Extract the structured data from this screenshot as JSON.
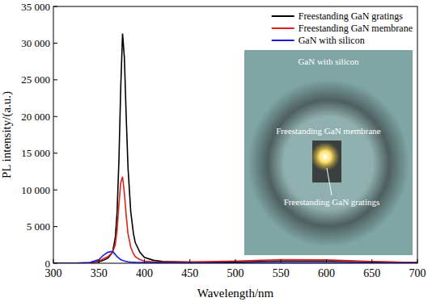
{
  "chart_data": {
    "type": "line",
    "x_label": "Wavelength/nm",
    "y_label": "PL intensity/(a.u.)",
    "x": [
      300,
      320,
      340,
      350,
      355,
      360,
      365,
      368,
      370,
      372,
      374,
      376,
      378,
      380,
      382,
      385,
      388,
      390,
      395,
      400,
      410,
      420,
      450,
      500,
      550,
      600,
      650,
      700
    ],
    "series": [
      {
        "name": "Freestanding GaN gratings",
        "color": "#000000",
        "values": [
          0,
          0,
          50,
          200,
          400,
          700,
          1500,
          3500,
          7000,
          14000,
          24000,
          31300,
          28000,
          20000,
          13000,
          7000,
          4000,
          2800,
          1500,
          800,
          400,
          250,
          150,
          200,
          300,
          300,
          200,
          100
        ]
      },
      {
        "name": "Freestanding GaN membrane",
        "color": "#e0201b",
        "values": [
          0,
          0,
          50,
          300,
          600,
          900,
          1500,
          2500,
          4500,
          8000,
          11000,
          11800,
          9500,
          6500,
          4000,
          2200,
          1300,
          900,
          500,
          300,
          200,
          150,
          150,
          300,
          500,
          450,
          250,
          100
        ]
      },
      {
        "name": "GaN with silicon",
        "color": "#1a1adf",
        "values": [
          0,
          0,
          100,
          500,
          1100,
          1500,
          1600,
          1200,
          900,
          700,
          500,
          400,
          300,
          250,
          200,
          150,
          130,
          120,
          110,
          100,
          80,
          70,
          60,
          60,
          70,
          70,
          60,
          50
        ]
      }
    ],
    "xlim": [
      300,
      700
    ],
    "xticks": [
      300,
      350,
      400,
      450,
      500,
      550,
      600,
      650,
      700
    ],
    "ylim": [
      0,
      35000
    ],
    "yticks": [
      0,
      {
        "value": 5000,
        "label": "5 000"
      },
      {
        "value": 10000,
        "label": "10 000"
      },
      {
        "value": 15000,
        "label": "15 000"
      },
      {
        "value": 20000,
        "label": "20 000"
      },
      {
        "value": 25000,
        "label": "25 000"
      },
      {
        "value": 30000,
        "label": "30 000"
      },
      {
        "value": 35000,
        "label": "35 000"
      }
    ],
    "grid": false,
    "legend": "upper right",
    "annotations": [
      "GaN with silicon",
      "Freestanding GaN membrane",
      "Freestanding GaN gratings"
    ]
  }
}
